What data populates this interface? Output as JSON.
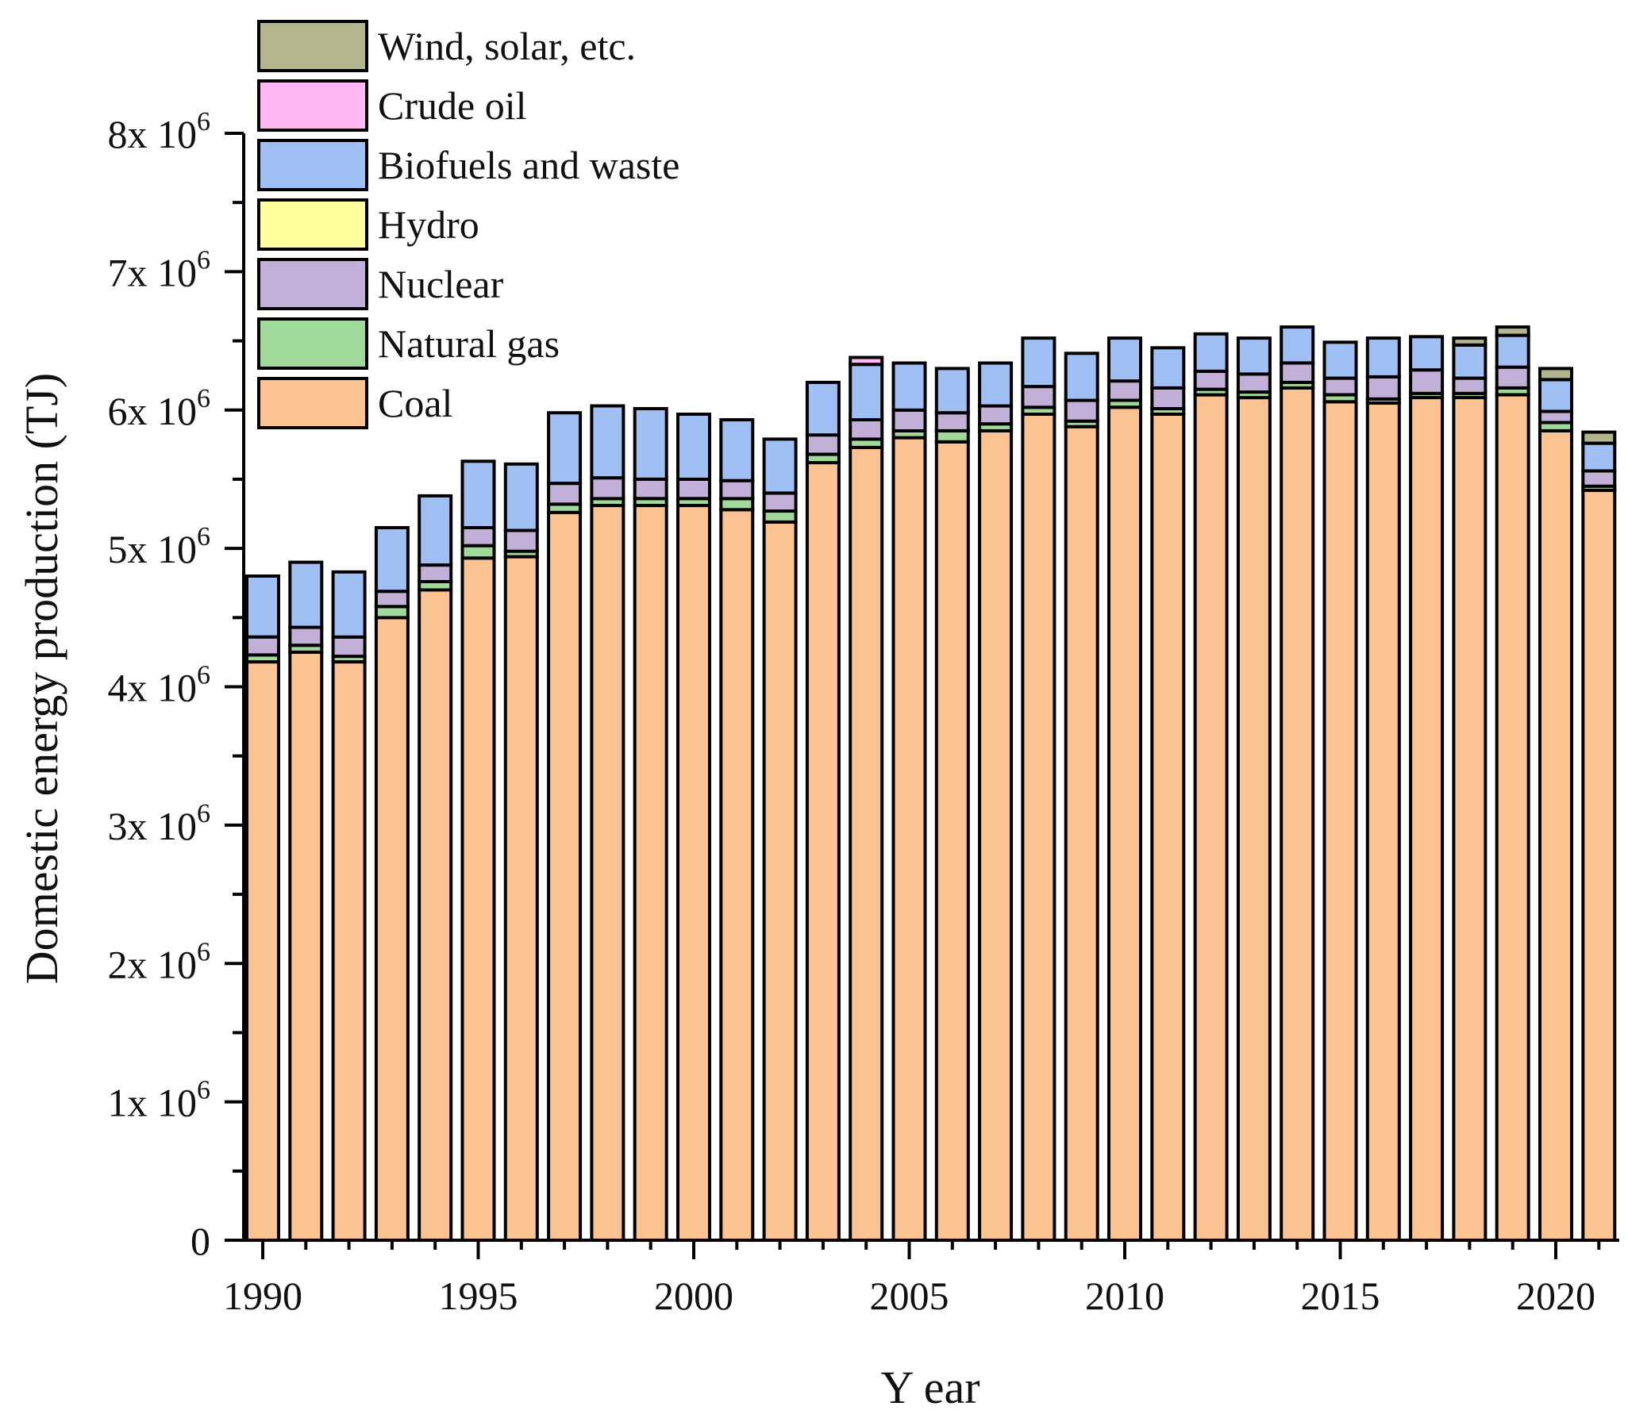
{
  "chart_data": {
    "type": "bar",
    "stacked": true,
    "title": "",
    "xlabel": "Y ear",
    "ylabel": "Domestic energy production (TJ)",
    "ylim": [
      0,
      8000000
    ],
    "x": [
      1990,
      1991,
      1992,
      1993,
      1994,
      1995,
      1996,
      1997,
      1998,
      1999,
      2000,
      2001,
      2002,
      2003,
      2004,
      2005,
      2006,
      2007,
      2008,
      2009,
      2010,
      2011,
      2012,
      2013,
      2014,
      2015,
      2016,
      2017,
      2018,
      2019,
      2020,
      2021
    ],
    "x_ticks": [
      "1990",
      "1995",
      "2000",
      "2005",
      "2010",
      "2015",
      "2020"
    ],
    "y_ticks": [
      {
        "value": 0,
        "mantissa": "0",
        "exp": ""
      },
      {
        "value": 1000000,
        "mantissa": "1x 10",
        "exp": "6"
      },
      {
        "value": 2000000,
        "mantissa": "2x 10",
        "exp": "6"
      },
      {
        "value": 3000000,
        "mantissa": "3x 10",
        "exp": "6"
      },
      {
        "value": 4000000,
        "mantissa": "4x 10",
        "exp": "6"
      },
      {
        "value": 5000000,
        "mantissa": "5x 10",
        "exp": "6"
      },
      {
        "value": 6000000,
        "mantissa": "6x 10",
        "exp": "6"
      },
      {
        "value": 7000000,
        "mantissa": "7x 10",
        "exp": "6"
      },
      {
        "value": 8000000,
        "mantissa": "8x 10",
        "exp": "6"
      }
    ],
    "series": [
      {
        "name": "Coal",
        "color": "#fbc392",
        "values": [
          4180000,
          4250000,
          4180000,
          4500000,
          4700000,
          4930000,
          4940000,
          5260000,
          5310000,
          5310000,
          5310000,
          5280000,
          5190000,
          5620000,
          5730000,
          5800000,
          5770000,
          5850000,
          5970000,
          5880000,
          6020000,
          5970000,
          6110000,
          6090000,
          6160000,
          6060000,
          6050000,
          6090000,
          6090000,
          6110000,
          5850000,
          5420000
        ]
      },
      {
        "name": "Natural gas",
        "color": "#a1d99b",
        "values": [
          50000,
          50000,
          40000,
          80000,
          60000,
          90000,
          40000,
          60000,
          50000,
          50000,
          50000,
          80000,
          80000,
          60000,
          60000,
          50000,
          80000,
          50000,
          50000,
          40000,
          50000,
          40000,
          40000,
          40000,
          40000,
          50000,
          30000,
          30000,
          30000,
          50000,
          60000,
          30000
        ]
      },
      {
        "name": "Nuclear",
        "color": "#c2b0d8",
        "values": [
          130000,
          130000,
          140000,
          110000,
          120000,
          130000,
          150000,
          150000,
          150000,
          140000,
          140000,
          130000,
          130000,
          140000,
          140000,
          150000,
          130000,
          130000,
          150000,
          150000,
          140000,
          150000,
          130000,
          130000,
          140000,
          120000,
          160000,
          170000,
          110000,
          150000,
          80000,
          110000
        ]
      },
      {
        "name": "Hydro",
        "color": "#ffff9d",
        "values": [
          0,
          0,
          0,
          0,
          0,
          0,
          0,
          0,
          0,
          0,
          0,
          0,
          0,
          0,
          0,
          0,
          0,
          0,
          0,
          0,
          0,
          0,
          0,
          0,
          0,
          0,
          0,
          0,
          0,
          0,
          0,
          0
        ]
      },
      {
        "name": "Biofuels and waste",
        "color": "#a0bff2",
        "values": [
          440000,
          470000,
          470000,
          460000,
          500000,
          480000,
          480000,
          510000,
          520000,
          510000,
          470000,
          440000,
          390000,
          380000,
          400000,
          340000,
          320000,
          310000,
          350000,
          340000,
          310000,
          290000,
          270000,
          260000,
          260000,
          260000,
          280000,
          240000,
          240000,
          230000,
          230000,
          200000
        ]
      },
      {
        "name": "Crude oil",
        "color": "#ffb8f3",
        "values": [
          0,
          0,
          0,
          0,
          0,
          0,
          0,
          0,
          0,
          0,
          0,
          0,
          0,
          0,
          50000,
          0,
          0,
          0,
          0,
          0,
          0,
          0,
          0,
          0,
          0,
          0,
          0,
          0,
          0,
          0,
          0,
          0
        ]
      },
      {
        "name": "Wind, solar, etc.",
        "color": "#b3b58f",
        "values": [
          0,
          0,
          0,
          0,
          0,
          0,
          0,
          0,
          0,
          0,
          0,
          0,
          0,
          0,
          0,
          0,
          0,
          0,
          0,
          0,
          0,
          0,
          0,
          0,
          0,
          0,
          0,
          0,
          50000,
          60000,
          80000,
          80000
        ]
      }
    ],
    "legend": [
      "Wind, solar, etc.",
      "Crude oil",
      "Biofuels and waste",
      "Hydro",
      "Nuclear",
      "Natural gas",
      "Coal"
    ],
    "legend_position": "top-left",
    "grid": false
  }
}
